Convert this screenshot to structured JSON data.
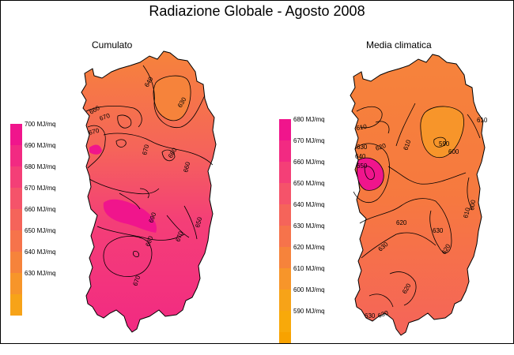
{
  "title": "Radiazione Globale - Agosto 2008",
  "maps": {
    "left": {
      "subtitle": "Cumulato",
      "legend": [
        {
          "label": "700 MJ/mq",
          "color": "#f0158c"
        },
        {
          "label": "690 MJ/mq",
          "color": "#f22a82"
        },
        {
          "label": "680 MJ/mq",
          "color": "#f43f77"
        },
        {
          "label": "670 MJ/mq",
          "color": "#f5536a"
        },
        {
          "label": "660 MJ/mq",
          "color": "#f5645a"
        },
        {
          "label": "650 MJ/mq",
          "color": "#f6734b"
        },
        {
          "label": "640 MJ/mq",
          "color": "#f6833b"
        },
        {
          "label": "630 MJ/mq",
          "color": "#f7952a"
        },
        {
          "label": "",
          "color": "#f7a318"
        }
      ],
      "contour_labels": [
        "640",
        "630",
        "660",
        "670",
        "670",
        "670",
        "660",
        "690",
        "680",
        "670",
        "670",
        "680",
        "650"
      ]
    },
    "right": {
      "subtitle": "Media climatica",
      "legend": [
        {
          "label": "680 MJ/mq",
          "color": "#f0158c"
        },
        {
          "label": "670 MJ/mq",
          "color": "#f22a82"
        },
        {
          "label": "660 MJ/mq",
          "color": "#f43f77"
        },
        {
          "label": "650 MJ/mq",
          "color": "#f5536a"
        },
        {
          "label": "640 MJ/mq",
          "color": "#f5645a"
        },
        {
          "label": "630 MJ/mq",
          "color": "#f6734b"
        },
        {
          "label": "620 MJ/mq",
          "color": "#f6833b"
        },
        {
          "label": "610 MJ/mq",
          "color": "#f7952a"
        },
        {
          "label": "600 MJ/mq",
          "color": "#f7a318"
        },
        {
          "label": "590 MJ/mq",
          "color": "#f8a90a"
        },
        {
          "label": "",
          "color": "#f8a200"
        }
      ],
      "contour_labels": [
        "610",
        "620",
        "610",
        "590",
        "600",
        "610",
        "630",
        "640",
        "650",
        "620",
        "630",
        "610",
        "620",
        "600",
        "630",
        "630",
        "620",
        "630"
      ]
    }
  }
}
